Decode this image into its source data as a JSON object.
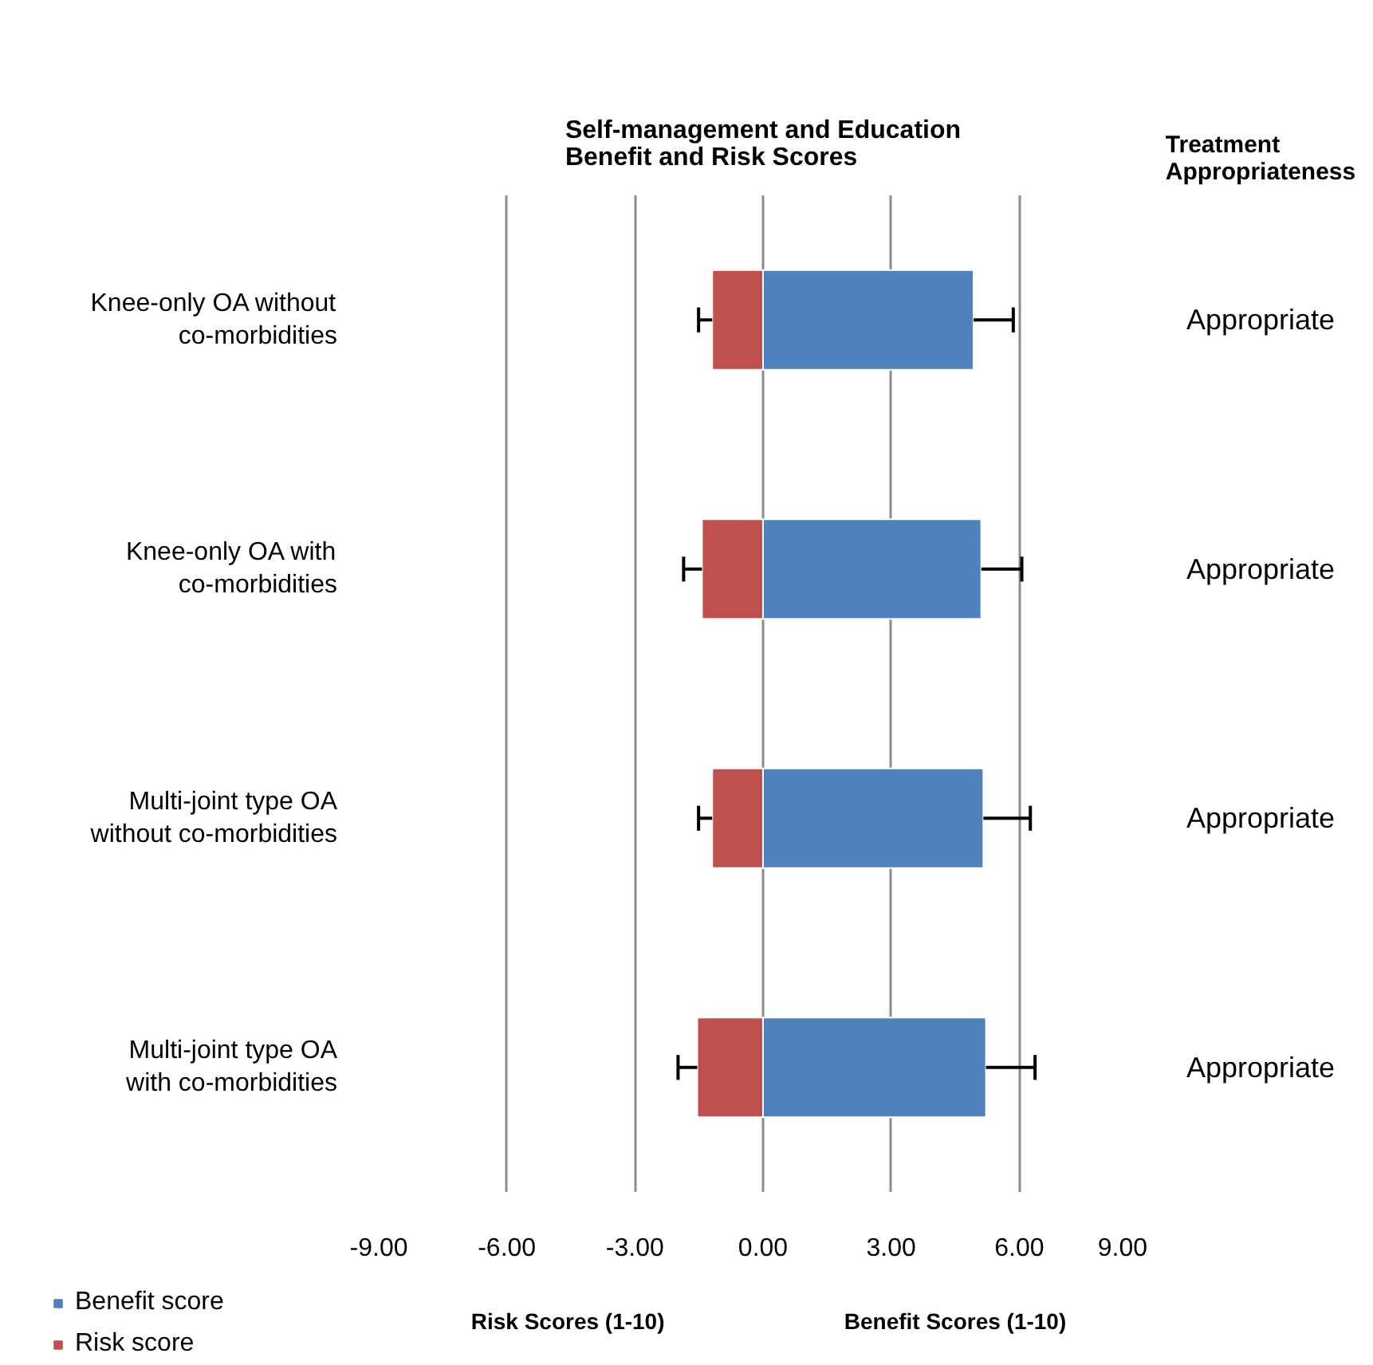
{
  "chart_data": {
    "type": "bar",
    "orientation": "horizontal",
    "stacked": true,
    "title": "Self-management and Education\nBenefit and Risk Scores",
    "categories": [
      "Knee-only OA without co-morbidities",
      "Knee-only OA with co-morbidities",
      "Multi-joint type OA without co-morbidities",
      "Multi-joint type OA with co-morbidities"
    ],
    "series": [
      {
        "name": "Benefit score",
        "color": "#4f81bd",
        "values": [
          4.93,
          5.11,
          5.16,
          5.22
        ],
        "errors": [
          [
            4.93,
            5.86
          ],
          [
            5.11,
            6.06
          ],
          [
            5.16,
            6.26
          ],
          [
            5.22,
            6.37
          ]
        ]
      },
      {
        "name": "Risk score",
        "color": "#c0504d",
        "values": [
          -1.19,
          -1.43,
          -1.19,
          -1.54
        ],
        "errors": [
          [
            -1.51,
            -1.19
          ],
          [
            -1.86,
            -1.43
          ],
          [
            -1.51,
            -1.19
          ],
          [
            -1.99,
            -1.54
          ]
        ]
      }
    ],
    "xlim": [
      -9,
      9
    ],
    "xticks": [
      {
        "value": -9,
        "label": "-9.00"
      },
      {
        "value": -6,
        "label": "-6.00"
      },
      {
        "value": -3,
        "label": "-3.00"
      },
      {
        "value": 0,
        "label": "0.00"
      },
      {
        "value": 3,
        "label": "3.00"
      },
      {
        "value": 6,
        "label": "6.00"
      },
      {
        "value": 9,
        "label": "9.00"
      }
    ],
    "grid": "x",
    "legend": "bottom left",
    "annotations": [
      "Treatment\nAppropriateness",
      "Appropriate",
      "Appropriate",
      "Appropriate",
      "Appropriate",
      "Risk  Scores (1-10)",
      "Benefit Scores (1-10)"
    ]
  }
}
